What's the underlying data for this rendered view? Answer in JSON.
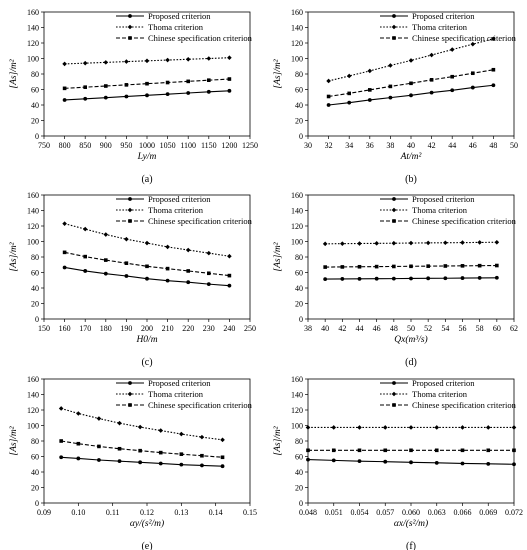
{
  "legend": [
    "Proposed criterion",
    "Thoma criterion",
    "Chinese specification criterion"
  ],
  "chart_data": [
    {
      "type": "line",
      "panel_label": "(a)",
      "ylabel": "[A_s]/m²",
      "ylabel_display": "[As]/m²",
      "xlabel": "L_y/m",
      "xlabel_display": "Ly/m",
      "xlim": [
        750,
        1250
      ],
      "xticks": [
        750,
        800,
        850,
        900,
        950,
        1000,
        1050,
        1100,
        1150,
        1200,
        1250
      ],
      "xtick_labels": [
        "750",
        "800",
        "850",
        "900",
        "950",
        "1000",
        "1050",
        "1100",
        "1150",
        "1200",
        "1250"
      ],
      "ylim": [
        0,
        160
      ],
      "yticks": [
        0,
        20,
        40,
        60,
        80,
        100,
        120,
        140,
        160
      ],
      "ytick_labels": [
        "0",
        "20",
        "40",
        "60",
        "80",
        "100",
        "120",
        "140",
        "160"
      ],
      "legend_position": "top-right",
      "x": [
        800,
        850,
        900,
        950,
        1000,
        1050,
        1100,
        1150,
        1200
      ],
      "series": [
        {
          "name": "Proposed criterion",
          "values": [
            46.5,
            48,
            49.5,
            51,
            52.5,
            54,
            55.5,
            57,
            58.3
          ]
        },
        {
          "name": "Thoma criterion",
          "values": [
            93,
            94,
            95,
            96,
            97,
            98,
            99,
            100,
            101
          ]
        },
        {
          "name": "Chinese specification criterion",
          "values": [
            61.5,
            63,
            64.5,
            66,
            67.5,
            69,
            70.5,
            72,
            73.5
          ]
        }
      ]
    },
    {
      "type": "line",
      "panel_label": "(b)",
      "ylabel": "[A_s]/m²",
      "ylabel_display": "[As]/m²",
      "xlabel": "A_t/m²",
      "xlabel_display": "At/m²",
      "xlim": [
        30,
        50
      ],
      "xticks": [
        30,
        32,
        34,
        36,
        38,
        40,
        42,
        44,
        46,
        48,
        50
      ],
      "xtick_labels": [
        "30",
        "32",
        "34",
        "36",
        "38",
        "40",
        "42",
        "44",
        "46",
        "48",
        "50"
      ],
      "ylim": [
        0,
        160
      ],
      "yticks": [
        0,
        20,
        40,
        60,
        80,
        100,
        120,
        140,
        160
      ],
      "ytick_labels": [
        "0",
        "20",
        "40",
        "60",
        "80",
        "100",
        "120",
        "140",
        "160"
      ],
      "legend_position": "top-right",
      "x": [
        32,
        34,
        36,
        38,
        40,
        42,
        44,
        46,
        48
      ],
      "series": [
        {
          "name": "Proposed criterion",
          "values": [
            40,
            43,
            46.5,
            49.5,
            52.5,
            56,
            59,
            62.5,
            65.5
          ]
        },
        {
          "name": "Thoma criterion",
          "values": [
            71,
            77.5,
            84,
            91,
            97.5,
            104.5,
            111.5,
            118.5,
            125.5
          ]
        },
        {
          "name": "Chinese specification criterion",
          "values": [
            51,
            55,
            59.5,
            64,
            68,
            72.5,
            76.5,
            81,
            85.5
          ]
        }
      ]
    },
    {
      "type": "line",
      "panel_label": "(c)",
      "ylabel": "[A_s]/m²",
      "ylabel_display": "[As]/m²",
      "xlabel": "H_0/m",
      "xlabel_display": "H0/m",
      "xlim": [
        150,
        250
      ],
      "xticks": [
        150,
        160,
        170,
        180,
        190,
        200,
        210,
        220,
        230,
        240,
        250
      ],
      "xtick_labels": [
        "150",
        "160",
        "170",
        "180",
        "190",
        "200",
        "210",
        "220",
        "230",
        "240",
        "250"
      ],
      "ylim": [
        0,
        160
      ],
      "yticks": [
        0,
        20,
        40,
        60,
        80,
        100,
        120,
        140,
        160
      ],
      "ytick_labels": [
        "0",
        "20",
        "40",
        "60",
        "80",
        "100",
        "120",
        "140",
        "160"
      ],
      "legend_position": "top-right",
      "x": [
        160,
        170,
        180,
        190,
        200,
        210,
        220,
        230,
        240
      ],
      "series": [
        {
          "name": "Proposed criterion",
          "values": [
            66.5,
            62,
            58.5,
            55.5,
            52,
            49.5,
            47.5,
            45,
            43
          ]
        },
        {
          "name": "Thoma criterion",
          "values": [
            123,
            116,
            109,
            103,
            98,
            93,
            89,
            85,
            81
          ]
        },
        {
          "name": "Chinese specification criterion",
          "values": [
            86,
            80.5,
            76,
            72,
            68,
            65,
            62,
            59,
            56
          ]
        }
      ]
    },
    {
      "type": "line",
      "panel_label": "(d)",
      "ylabel": "[A_s]/m²",
      "ylabel_display": "[As]/m²",
      "xlabel": "Q_x(m³/s)",
      "xlabel_display": "Qx(m³/s)",
      "xlim": [
        38,
        62
      ],
      "xticks": [
        38,
        40,
        42,
        44,
        46,
        48,
        50,
        52,
        54,
        56,
        58,
        60,
        62
      ],
      "xtick_labels": [
        "38",
        "40",
        "42",
        "44",
        "46",
        "48",
        "50",
        "52",
        "54",
        "56",
        "58",
        "60",
        "62"
      ],
      "ylim": [
        0,
        160
      ],
      "yticks": [
        0,
        20,
        40,
        60,
        80,
        100,
        120,
        140,
        160
      ],
      "ytick_labels": [
        "0",
        "20",
        "40",
        "60",
        "80",
        "100",
        "120",
        "140",
        "160"
      ],
      "legend_position": "top-right",
      "x": [
        40,
        42,
        44,
        46,
        48,
        50,
        52,
        54,
        56,
        58,
        60
      ],
      "series": [
        {
          "name": "Proposed criterion",
          "values": [
            51.5,
            51.7,
            51.8,
            52,
            52.1,
            52.3,
            52.5,
            52.6,
            52.8,
            53,
            53.2
          ]
        },
        {
          "name": "Thoma criterion",
          "values": [
            97,
            97.2,
            97.4,
            97.6,
            97.8,
            98,
            98.2,
            98.4,
            98.6,
            98.8,
            99
          ]
        },
        {
          "name": "Chinese specification criterion",
          "values": [
            67,
            67.2,
            67.4,
            67.6,
            67.8,
            68,
            68.2,
            68.4,
            68.6,
            68.8,
            69
          ]
        }
      ]
    },
    {
      "type": "line",
      "panel_label": "(e)",
      "ylabel": "[A_s]/m²",
      "ylabel_display": "[As]/m²",
      "xlabel": "α_y/(s²/m)",
      "xlabel_display": "αy/(s²/m)",
      "xlim": [
        0.09,
        0.15
      ],
      "xticks": [
        0.09,
        0.1,
        0.11,
        0.12,
        0.13,
        0.14,
        0.15
      ],
      "xtick_labels": [
        "0.09",
        "0.10",
        "0.11",
        "0.12",
        "0.13",
        "0.14",
        "0.15"
      ],
      "ylim": [
        0,
        160
      ],
      "yticks": [
        0,
        20,
        40,
        60,
        80,
        100,
        120,
        140,
        160
      ],
      "ytick_labels": [
        "0",
        "20",
        "40",
        "60",
        "80",
        "100",
        "120",
        "140",
        "160"
      ],
      "legend_position": "top-right",
      "x": [
        0.095,
        0.1,
        0.106,
        0.112,
        0.118,
        0.124,
        0.13,
        0.136,
        0.142
      ],
      "series": [
        {
          "name": "Proposed criterion",
          "values": [
            59,
            57.5,
            55.5,
            54,
            52.5,
            51,
            49.5,
            48.5,
            47.5
          ]
        },
        {
          "name": "Thoma criterion",
          "values": [
            122,
            115.5,
            109,
            103,
            98,
            93.5,
            89,
            85,
            81.5
          ]
        },
        {
          "name": "Chinese specification criterion",
          "values": [
            80,
            76.5,
            73,
            70,
            67.5,
            65,
            63,
            61,
            59
          ]
        }
      ]
    },
    {
      "type": "line",
      "panel_label": "(f)",
      "ylabel": "[A_s]/m²",
      "ylabel_display": "[As]/m²",
      "xlabel": "α_x/(s²/m)",
      "xlabel_display": "αx/(s²/m)",
      "xlim": [
        0.048,
        0.072
      ],
      "xticks": [
        0.048,
        0.051,
        0.054,
        0.057,
        0.06,
        0.063,
        0.066,
        0.069,
        0.072
      ],
      "xtick_labels": [
        "0.048",
        "0.051",
        "0.054",
        "0.057",
        "0.060",
        "0.063",
        "0.066",
        "0.069",
        "0.072"
      ],
      "ylim": [
        0,
        160
      ],
      "yticks": [
        0,
        20,
        40,
        60,
        80,
        100,
        120,
        140,
        160
      ],
      "ytick_labels": [
        "0",
        "20",
        "40",
        "60",
        "80",
        "100",
        "120",
        "140",
        "160"
      ],
      "legend_position": "top-right",
      "x": [
        0.048,
        0.051,
        0.054,
        0.057,
        0.06,
        0.063,
        0.066,
        0.069,
        0.072
      ],
      "series": [
        {
          "name": "Proposed criterion",
          "values": [
            56,
            55,
            54,
            53.3,
            52.5,
            51.8,
            51,
            50.5,
            50
          ]
        },
        {
          "name": "Thoma criterion",
          "values": [
            97.5,
            97.5,
            97.5,
            97.5,
            97.5,
            97.5,
            97.5,
            97.5,
            97.5
          ]
        },
        {
          "name": "Chinese specification criterion",
          "values": [
            68,
            68,
            68,
            68,
            68,
            68,
            68,
            68,
            68
          ]
        }
      ]
    }
  ]
}
